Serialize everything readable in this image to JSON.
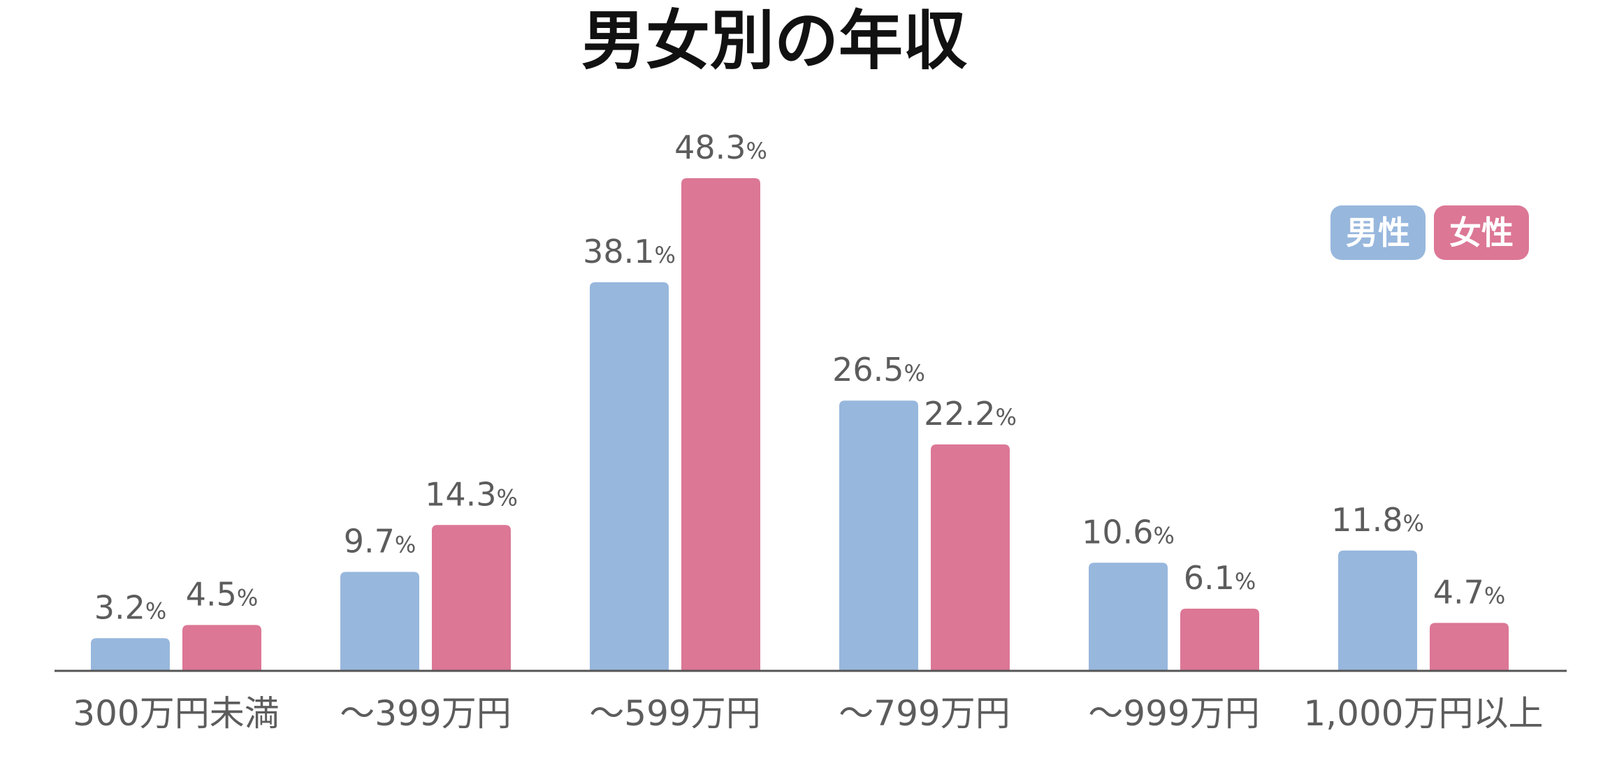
{
  "chart_data": {
    "type": "bar",
    "title": "男女別の年収",
    "xlabel": "",
    "ylabel": "",
    "ylim": [
      0,
      50
    ],
    "grid": false,
    "legend_position": "top-right",
    "value_suffix": "%",
    "categories": [
      "300万円未満",
      "～399万円",
      "～599万円",
      "～799万円",
      "～999万円",
      "1,000万円以上"
    ],
    "series": [
      {
        "name": "男性",
        "color": "#97b7dd",
        "values": [
          3.2,
          9.7,
          38.1,
          26.5,
          10.6,
          11.8
        ]
      },
      {
        "name": "女性",
        "color": "#dc7795",
        "values": [
          4.5,
          14.3,
          48.3,
          22.2,
          6.1,
          4.7
        ]
      }
    ]
  }
}
